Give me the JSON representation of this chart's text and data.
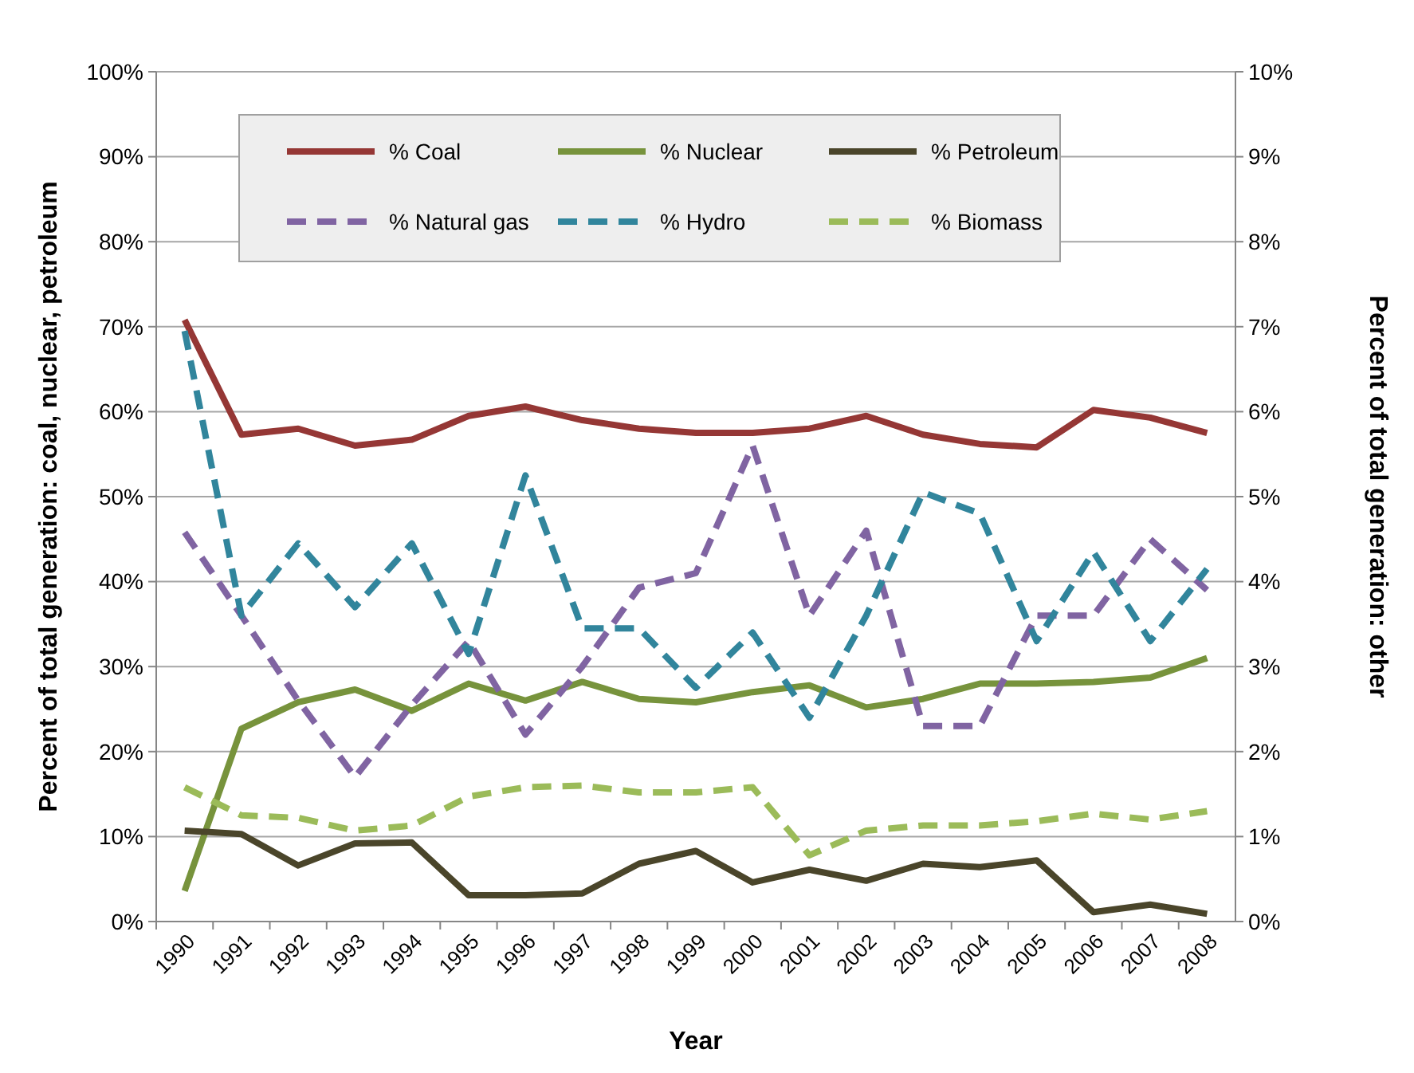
{
  "chart_data": {
    "type": "line",
    "xlabel": "Year",
    "ylabel": "Percent of total generation: coal, nuclear, petroleum",
    "y2label": "Percent of total generation: other",
    "categories": [
      "1990",
      "1991",
      "1992",
      "1993",
      "1994",
      "1995",
      "1996",
      "1997",
      "1998",
      "1999",
      "2000",
      "2001",
      "2002",
      "2003",
      "2004",
      "2005",
      "2006",
      "2007",
      "2008"
    ],
    "series": [
      {
        "name": "% Coal",
        "color": "#953735",
        "line_style": "solid",
        "values": [
          70.8,
          57.3,
          58.0,
          56.0,
          56.7,
          59.5,
          60.6,
          59.0,
          58.0,
          57.5,
          57.5,
          58.0,
          59.5,
          57.3,
          56.2,
          55.8,
          60.2,
          59.3,
          57.5
        ]
      },
      {
        "name": "% Nuclear",
        "color": "#77933c",
        "line_style": "solid",
        "values": [
          3.6,
          22.7,
          25.8,
          27.3,
          24.8,
          28.0,
          26.0,
          28.2,
          26.2,
          25.8,
          27.0,
          27.8,
          25.2,
          26.2,
          28.0,
          28.0,
          28.2,
          28.7,
          31.0
        ]
      },
      {
        "name": "% Petroleum",
        "color": "#4a452a",
        "line_style": "solid",
        "values": [
          10.7,
          10.3,
          6.6,
          9.2,
          9.3,
          3.1,
          3.1,
          3.3,
          6.8,
          8.3,
          4.6,
          6.1,
          4.8,
          6.8,
          6.4,
          7.2,
          1.1,
          2.0,
          0.9
        ]
      },
      {
        "name": "% Natural gas",
        "color": "#8064a2",
        "line_style": "dashed",
        "axis": "y2",
        "values": [
          4.58,
          3.6,
          2.6,
          1.7,
          2.55,
          3.3,
          2.2,
          3.0,
          3.93,
          4.1,
          5.6,
          3.6,
          4.6,
          2.3,
          2.3,
          3.6,
          3.6,
          4.5,
          3.9
        ]
      },
      {
        "name": "% Hydro",
        "color": "#31859c",
        "line_style": "dashed",
        "axis": "y2",
        "values": [
          6.95,
          3.6,
          4.45,
          3.7,
          4.45,
          3.15,
          5.25,
          3.45,
          3.45,
          2.75,
          3.4,
          2.4,
          3.6,
          5.05,
          4.8,
          3.3,
          4.35,
          3.3,
          4.15
        ]
      },
      {
        "name": "% Biomass",
        "color": "#9bbb59",
        "line_style": "dashed",
        "axis": "y2",
        "values": [
          1.58,
          1.25,
          1.22,
          1.07,
          1.13,
          1.47,
          1.58,
          1.6,
          1.52,
          1.52,
          1.58,
          0.78,
          1.07,
          1.13,
          1.13,
          1.18,
          1.27,
          1.2,
          1.3
        ]
      }
    ],
    "ylim": [
      0,
      100
    ],
    "yticks": [
      {
        "value": 0,
        "label": "0%"
      },
      {
        "value": 10,
        "label": "10%"
      },
      {
        "value": 20,
        "label": "20%"
      },
      {
        "value": 30,
        "label": "30%"
      },
      {
        "value": 40,
        "label": "40%"
      },
      {
        "value": 50,
        "label": "50%"
      },
      {
        "value": 60,
        "label": "60%"
      },
      {
        "value": 70,
        "label": "70%"
      },
      {
        "value": 80,
        "label": "80%"
      },
      {
        "value": 90,
        "label": "90%"
      },
      {
        "value": 100,
        "label": "100%"
      }
    ],
    "y2lim": [
      0,
      10
    ],
    "y2ticks": [
      {
        "value": 0,
        "label": "0%"
      },
      {
        "value": 1,
        "label": "1%"
      },
      {
        "value": 2,
        "label": "2%"
      },
      {
        "value": 3,
        "label": "3%"
      },
      {
        "value": 4,
        "label": "4%"
      },
      {
        "value": 5,
        "label": "5%"
      },
      {
        "value": 6,
        "label": "6%"
      },
      {
        "value": 7,
        "label": "7%"
      },
      {
        "value": 8,
        "label": "8%"
      },
      {
        "value": 9,
        "label": "9%"
      },
      {
        "value": 10,
        "label": "10%"
      }
    ],
    "grid": "y",
    "legend": "top",
    "marker": "none"
  }
}
